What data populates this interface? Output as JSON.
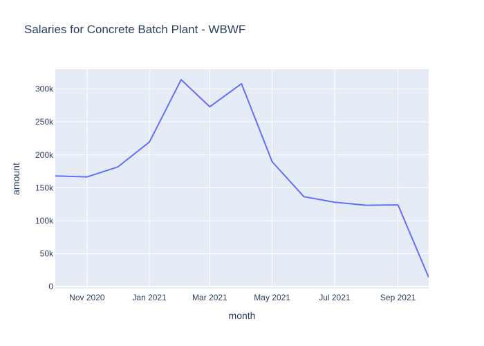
{
  "chart_data": {
    "type": "line",
    "title": "Salaries for Concrete Batch Plant - WBWF",
    "xlabel": "month",
    "ylabel": "amount",
    "x": [
      "2020-10-01",
      "2020-11-01",
      "2020-12-01",
      "2021-01-01",
      "2021-02-01",
      "2021-03-01",
      "2021-04-01",
      "2021-05-01",
      "2021-06-01",
      "2021-07-01",
      "2021-08-01",
      "2021-09-01",
      "2021-10-01"
    ],
    "series": [
      {
        "values": [
          168000,
          166500,
          181500,
          219500,
          314000,
          273000,
          308000,
          189500,
          136500,
          128000,
          123500,
          124000,
          14000
        ],
        "color": "#636efa"
      }
    ],
    "xlim": [
      "2020-10-01",
      "2021-10-01"
    ],
    "ylim": [
      -3000,
      330000
    ],
    "x_ticks": [
      {
        "date": "2020-11-01",
        "label": "Nov 2020"
      },
      {
        "date": "2021-01-01",
        "label": "Jan 2021"
      },
      {
        "date": "2021-03-01",
        "label": "Mar 2021"
      },
      {
        "date": "2021-05-01",
        "label": "May 2021"
      },
      {
        "date": "2021-07-01",
        "label": "Jul 2021"
      },
      {
        "date": "2021-09-01",
        "label": "Sep 2021"
      }
    ],
    "y_ticks": [
      {
        "value": 0,
        "label": "0"
      },
      {
        "value": 50000,
        "label": "50k"
      },
      {
        "value": 100000,
        "label": "100k"
      },
      {
        "value": 150000,
        "label": "150k"
      },
      {
        "value": 200000,
        "label": "200k"
      },
      {
        "value": 250000,
        "label": "250k"
      },
      {
        "value": 300000,
        "label": "300k"
      }
    ],
    "grid": true,
    "colors": {
      "plot_background": "#e5ecf6",
      "grid": "#ffffff",
      "text": "#2a3f5f",
      "line": "#636efa"
    }
  }
}
